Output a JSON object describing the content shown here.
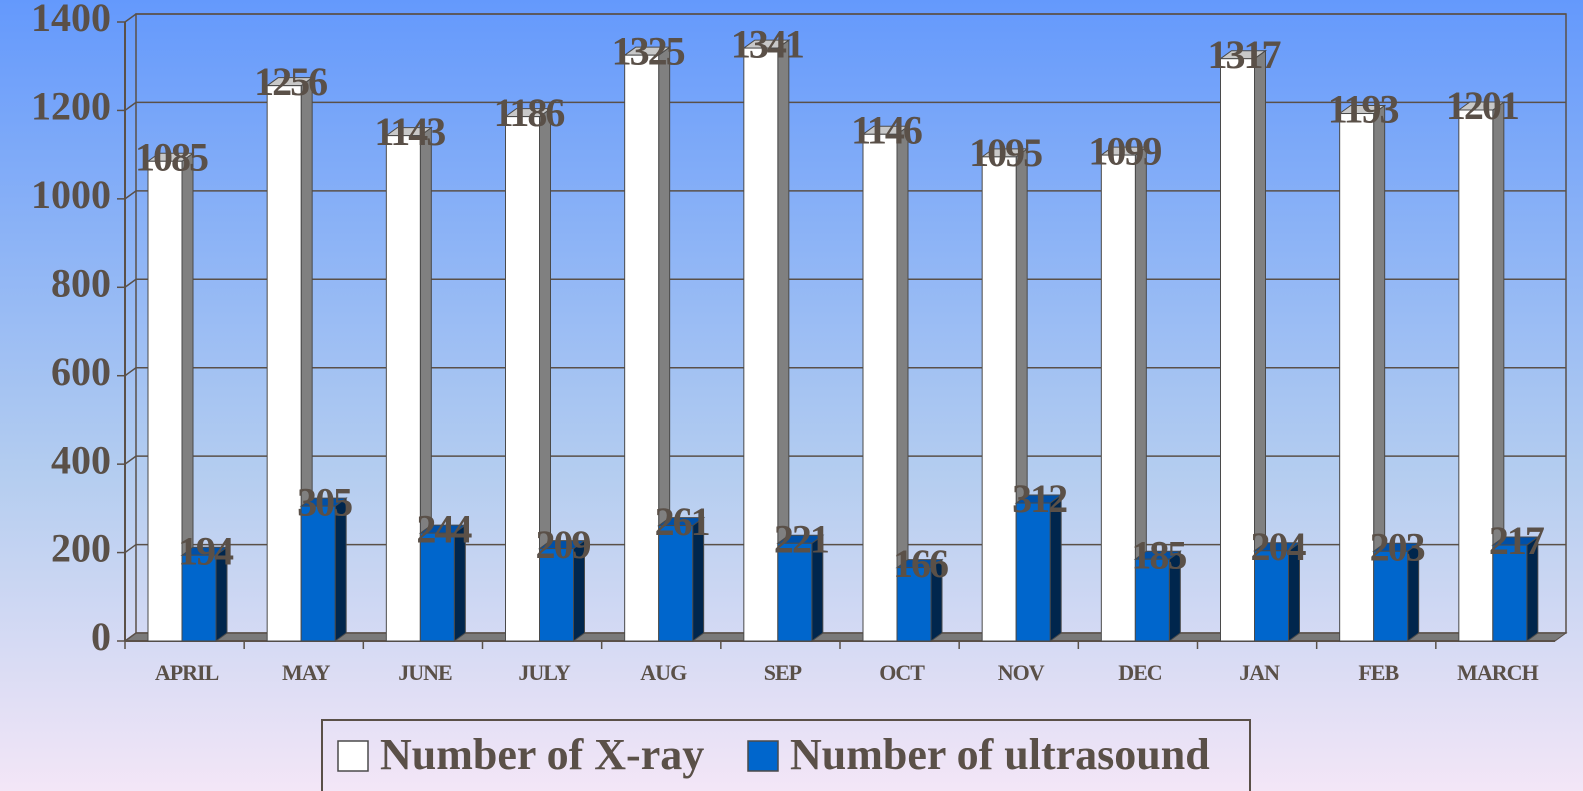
{
  "chart_data": {
    "type": "bar",
    "categories": [
      "APRIL",
      "MAY",
      "JUNE",
      "JULY",
      "AUG",
      "SEP",
      "OCT",
      "NOV",
      "DEC",
      "JAN",
      "FEB",
      "MARCH"
    ],
    "series": [
      {
        "name": "Number of X-ray",
        "color": "#ffffff",
        "values": [
          1085,
          1256,
          1143,
          1186,
          1325,
          1341,
          1146,
          1095,
          1099,
          1317,
          1193,
          1201
        ]
      },
      {
        "name": "Number of ultrasound",
        "color": "#0066cc",
        "values": [
          194,
          305,
          244,
          209,
          261,
          221,
          166,
          312,
          185,
          204,
          203,
          217
        ]
      }
    ],
    "ylim": [
      0,
      1400
    ],
    "yticks": [
      0,
      200,
      400,
      600,
      800,
      1000,
      1200,
      1400
    ],
    "grid": true,
    "legend": "bottom"
  }
}
